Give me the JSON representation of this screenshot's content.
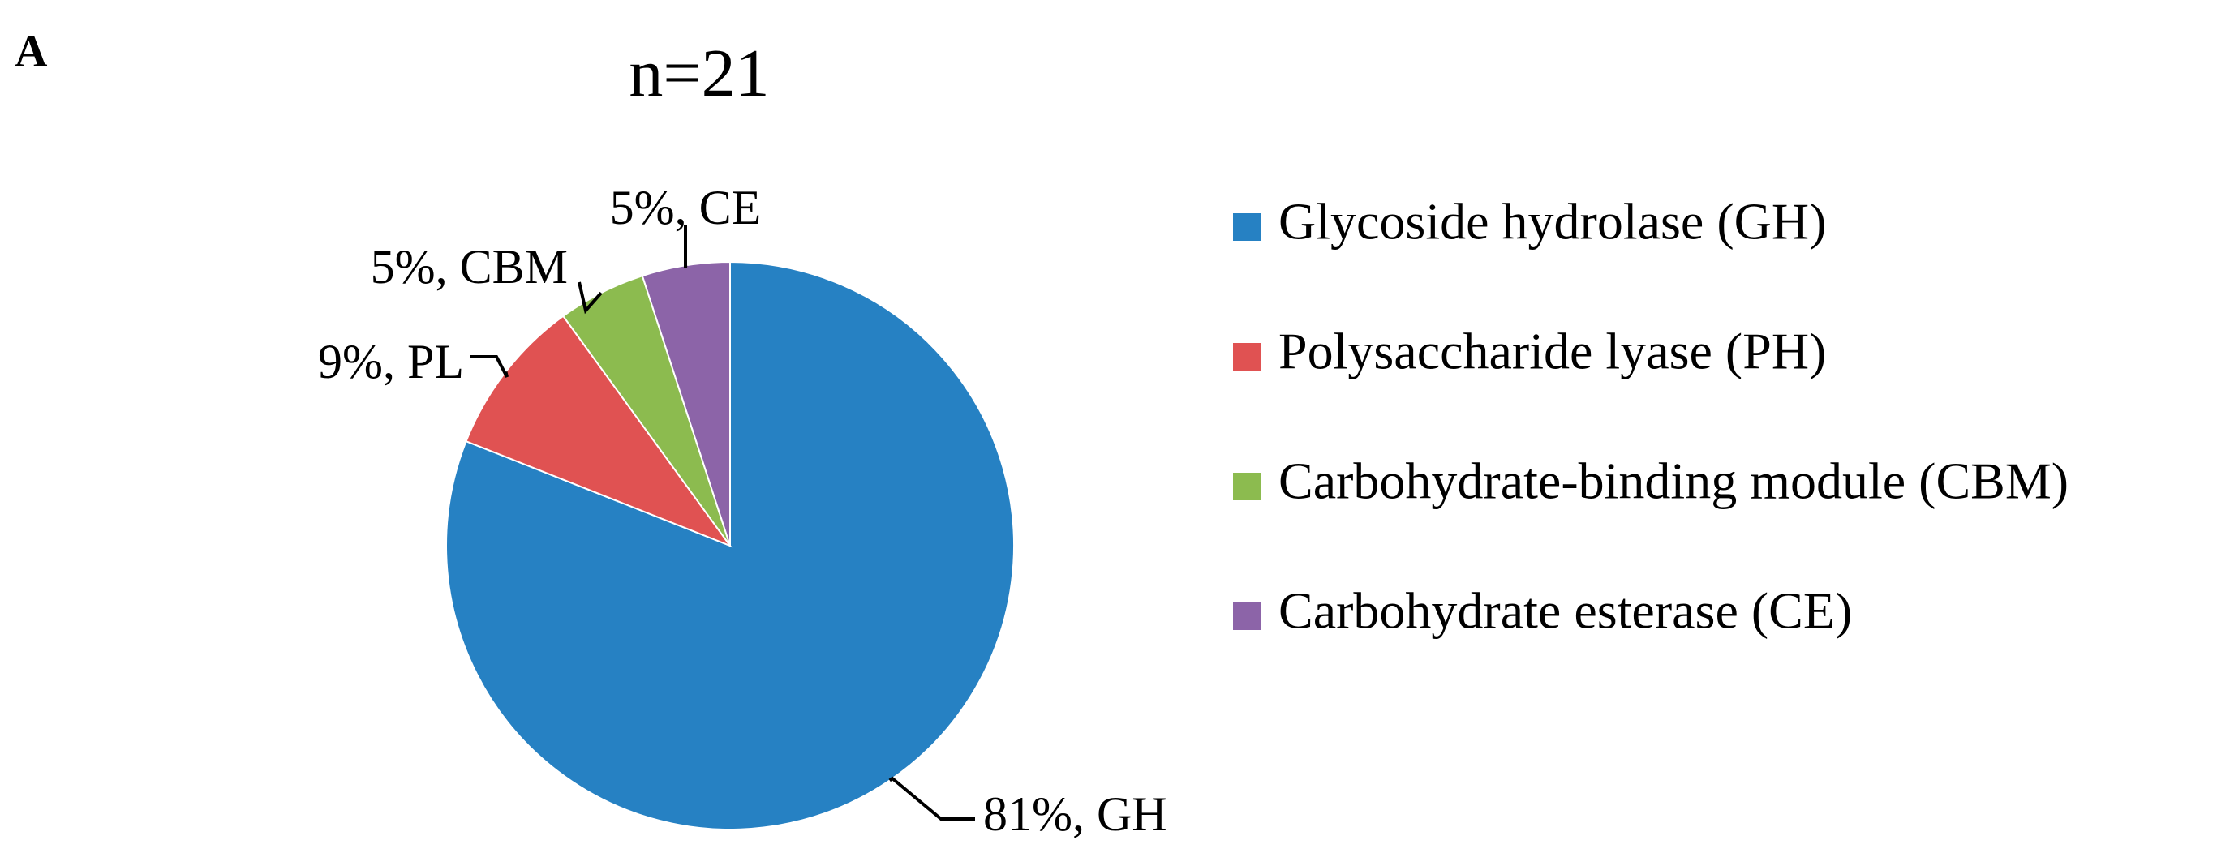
{
  "panel_label": "A",
  "chart_data": {
    "type": "pie",
    "title": "n=21",
    "slices": [
      {
        "key": "GH",
        "label": "81%, GH",
        "value": 81,
        "color": "#2681C3",
        "legend": "Glycoside hydrolase (GH)"
      },
      {
        "key": "PL",
        "label": "9%, PL",
        "value": 9,
        "color": "#E05252",
        "legend": "Polysaccharide lyase (PH)"
      },
      {
        "key": "CBM",
        "label": "5%, CBM",
        "value": 5,
        "color": "#8CBB4F",
        "legend": "Carbohydrate-binding module (CBM)"
      },
      {
        "key": "CE",
        "label": "5%, CE",
        "value": 5,
        "color": "#8C64A8",
        "legend": "Carbohydrate esterase (CE)"
      }
    ],
    "legend_position": "right"
  }
}
